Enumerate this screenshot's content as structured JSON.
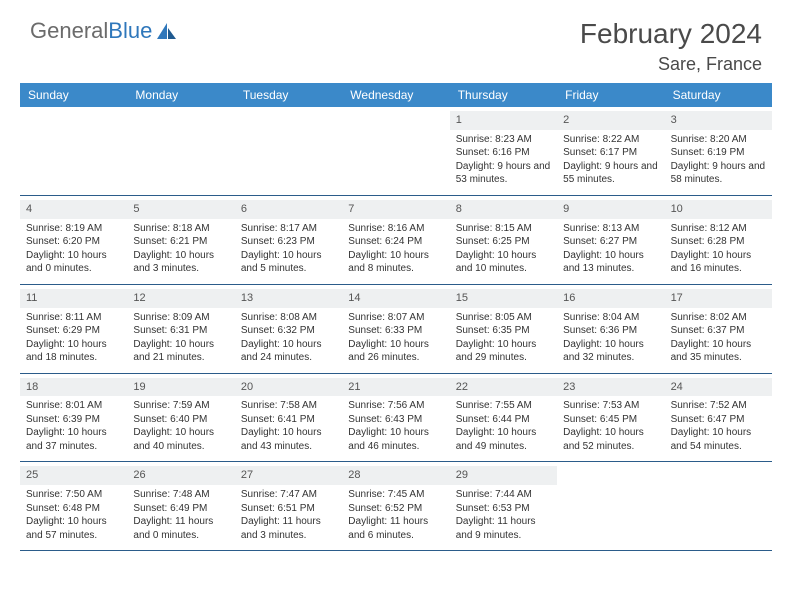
{
  "brand": {
    "word1": "General",
    "word2": "Blue"
  },
  "title": "February 2024",
  "location": "Sare, France",
  "header_bg": "#3b89c9",
  "border_color": "#2b5c8a",
  "daynum_bg": "#eef0f1",
  "day_names": [
    "Sunday",
    "Monday",
    "Tuesday",
    "Wednesday",
    "Thursday",
    "Friday",
    "Saturday"
  ],
  "weeks": [
    [
      null,
      null,
      null,
      null,
      {
        "n": "1",
        "sunrise": "Sunrise: 8:23 AM",
        "sunset": "Sunset: 6:16 PM",
        "daylight": "Daylight: 9 hours and 53 minutes."
      },
      {
        "n": "2",
        "sunrise": "Sunrise: 8:22 AM",
        "sunset": "Sunset: 6:17 PM",
        "daylight": "Daylight: 9 hours and 55 minutes."
      },
      {
        "n": "3",
        "sunrise": "Sunrise: 8:20 AM",
        "sunset": "Sunset: 6:19 PM",
        "daylight": "Daylight: 9 hours and 58 minutes."
      }
    ],
    [
      {
        "n": "4",
        "sunrise": "Sunrise: 8:19 AM",
        "sunset": "Sunset: 6:20 PM",
        "daylight": "Daylight: 10 hours and 0 minutes."
      },
      {
        "n": "5",
        "sunrise": "Sunrise: 8:18 AM",
        "sunset": "Sunset: 6:21 PM",
        "daylight": "Daylight: 10 hours and 3 minutes."
      },
      {
        "n": "6",
        "sunrise": "Sunrise: 8:17 AM",
        "sunset": "Sunset: 6:23 PM",
        "daylight": "Daylight: 10 hours and 5 minutes."
      },
      {
        "n": "7",
        "sunrise": "Sunrise: 8:16 AM",
        "sunset": "Sunset: 6:24 PM",
        "daylight": "Daylight: 10 hours and 8 minutes."
      },
      {
        "n": "8",
        "sunrise": "Sunrise: 8:15 AM",
        "sunset": "Sunset: 6:25 PM",
        "daylight": "Daylight: 10 hours and 10 minutes."
      },
      {
        "n": "9",
        "sunrise": "Sunrise: 8:13 AM",
        "sunset": "Sunset: 6:27 PM",
        "daylight": "Daylight: 10 hours and 13 minutes."
      },
      {
        "n": "10",
        "sunrise": "Sunrise: 8:12 AM",
        "sunset": "Sunset: 6:28 PM",
        "daylight": "Daylight: 10 hours and 16 minutes."
      }
    ],
    [
      {
        "n": "11",
        "sunrise": "Sunrise: 8:11 AM",
        "sunset": "Sunset: 6:29 PM",
        "daylight": "Daylight: 10 hours and 18 minutes."
      },
      {
        "n": "12",
        "sunrise": "Sunrise: 8:09 AM",
        "sunset": "Sunset: 6:31 PM",
        "daylight": "Daylight: 10 hours and 21 minutes."
      },
      {
        "n": "13",
        "sunrise": "Sunrise: 8:08 AM",
        "sunset": "Sunset: 6:32 PM",
        "daylight": "Daylight: 10 hours and 24 minutes."
      },
      {
        "n": "14",
        "sunrise": "Sunrise: 8:07 AM",
        "sunset": "Sunset: 6:33 PM",
        "daylight": "Daylight: 10 hours and 26 minutes."
      },
      {
        "n": "15",
        "sunrise": "Sunrise: 8:05 AM",
        "sunset": "Sunset: 6:35 PM",
        "daylight": "Daylight: 10 hours and 29 minutes."
      },
      {
        "n": "16",
        "sunrise": "Sunrise: 8:04 AM",
        "sunset": "Sunset: 6:36 PM",
        "daylight": "Daylight: 10 hours and 32 minutes."
      },
      {
        "n": "17",
        "sunrise": "Sunrise: 8:02 AM",
        "sunset": "Sunset: 6:37 PM",
        "daylight": "Daylight: 10 hours and 35 minutes."
      }
    ],
    [
      {
        "n": "18",
        "sunrise": "Sunrise: 8:01 AM",
        "sunset": "Sunset: 6:39 PM",
        "daylight": "Daylight: 10 hours and 37 minutes."
      },
      {
        "n": "19",
        "sunrise": "Sunrise: 7:59 AM",
        "sunset": "Sunset: 6:40 PM",
        "daylight": "Daylight: 10 hours and 40 minutes."
      },
      {
        "n": "20",
        "sunrise": "Sunrise: 7:58 AM",
        "sunset": "Sunset: 6:41 PM",
        "daylight": "Daylight: 10 hours and 43 minutes."
      },
      {
        "n": "21",
        "sunrise": "Sunrise: 7:56 AM",
        "sunset": "Sunset: 6:43 PM",
        "daylight": "Daylight: 10 hours and 46 minutes."
      },
      {
        "n": "22",
        "sunrise": "Sunrise: 7:55 AM",
        "sunset": "Sunset: 6:44 PM",
        "daylight": "Daylight: 10 hours and 49 minutes."
      },
      {
        "n": "23",
        "sunrise": "Sunrise: 7:53 AM",
        "sunset": "Sunset: 6:45 PM",
        "daylight": "Daylight: 10 hours and 52 minutes."
      },
      {
        "n": "24",
        "sunrise": "Sunrise: 7:52 AM",
        "sunset": "Sunset: 6:47 PM",
        "daylight": "Daylight: 10 hours and 54 minutes."
      }
    ],
    [
      {
        "n": "25",
        "sunrise": "Sunrise: 7:50 AM",
        "sunset": "Sunset: 6:48 PM",
        "daylight": "Daylight: 10 hours and 57 minutes."
      },
      {
        "n": "26",
        "sunrise": "Sunrise: 7:48 AM",
        "sunset": "Sunset: 6:49 PM",
        "daylight": "Daylight: 11 hours and 0 minutes."
      },
      {
        "n": "27",
        "sunrise": "Sunrise: 7:47 AM",
        "sunset": "Sunset: 6:51 PM",
        "daylight": "Daylight: 11 hours and 3 minutes."
      },
      {
        "n": "28",
        "sunrise": "Sunrise: 7:45 AM",
        "sunset": "Sunset: 6:52 PM",
        "daylight": "Daylight: 11 hours and 6 minutes."
      },
      {
        "n": "29",
        "sunrise": "Sunrise: 7:44 AM",
        "sunset": "Sunset: 6:53 PM",
        "daylight": "Daylight: 11 hours and 9 minutes."
      },
      null,
      null
    ]
  ]
}
